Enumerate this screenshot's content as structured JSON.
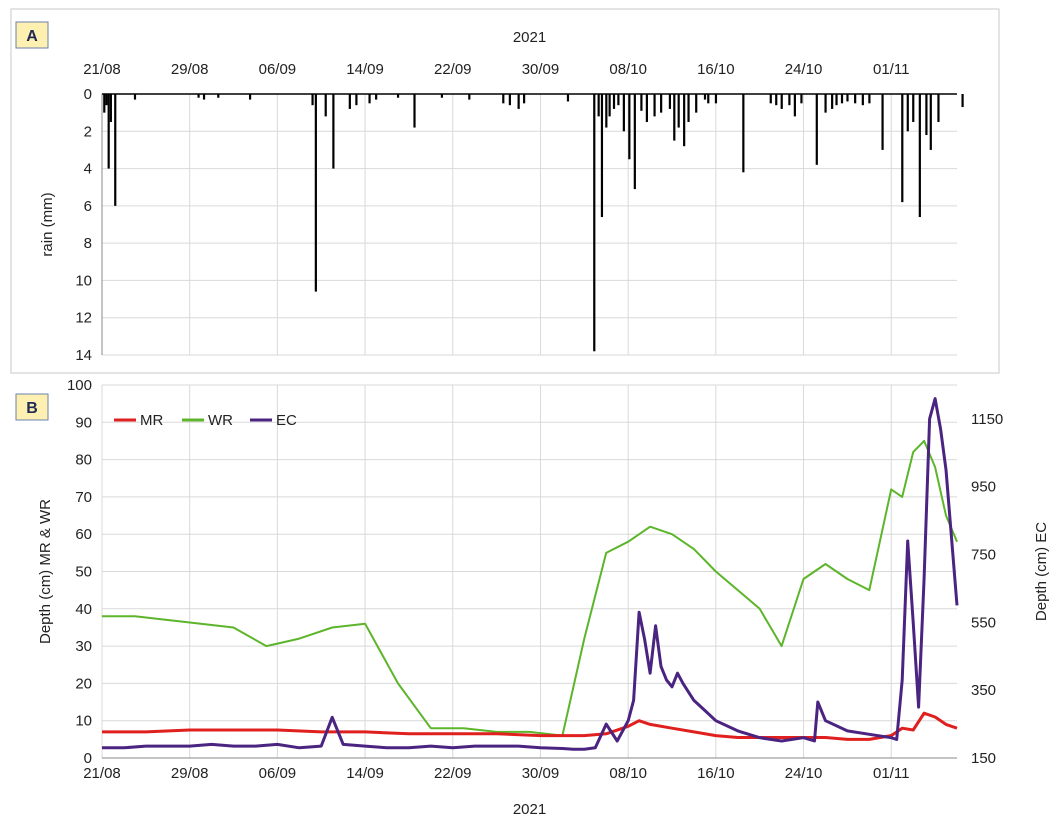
{
  "chart_data": [
    {
      "panel": "A",
      "type": "bar",
      "xlabel_top": "2021",
      "ylabel": "rain (mm)",
      "x_ticks": [
        "21/08",
        "29/08",
        "06/09",
        "14/09",
        "22/09",
        "30/09",
        "08/10",
        "16/10",
        "24/10",
        "01/11"
      ],
      "ylim": [
        0,
        14
      ],
      "y_inverted": true,
      "y_ticks": [
        0,
        2,
        4,
        6,
        8,
        10,
        12,
        14
      ],
      "grid": true,
      "x_day_range": [
        0,
        78
      ],
      "x_day_origin": "21/08",
      "series": [
        {
          "name": "",
          "color": "#000000",
          "x": [
            0.2,
            0.4,
            0.6,
            0.8,
            1.2,
            3.0,
            8.8,
            9.3,
            10.6,
            13.5,
            19.2,
            19.5,
            20.4,
            21.1,
            22.6,
            23.2,
            24.4,
            25.0,
            27.0,
            28.5,
            31.0,
            33.5,
            36.6,
            37.2,
            38.0,
            38.5,
            42.5,
            44.9,
            45.3,
            45.6,
            46.0,
            46.3,
            46.7,
            47.1,
            47.6,
            48.1,
            48.6,
            49.2,
            49.7,
            50.4,
            51.0,
            51.8,
            52.2,
            52.6,
            53.1,
            53.5,
            54.2,
            55.0,
            55.3,
            56.0,
            58.5,
            61.0,
            61.5,
            62.0,
            62.7,
            63.2,
            63.8,
            65.2,
            66.0,
            66.6,
            67.0,
            67.5,
            68.0,
            68.7,
            69.4,
            70.0,
            71.2,
            73.0,
            73.5,
            74.0,
            74.6,
            75.2,
            75.6,
            76.3,
            78.5
          ],
          "values": [
            1.0,
            0.6,
            4.0,
            1.5,
            6.0,
            0.3,
            0.2,
            0.3,
            0.2,
            0.3,
            0.6,
            10.6,
            1.2,
            4.0,
            0.8,
            0.6,
            0.5,
            0.3,
            0.2,
            1.8,
            0.2,
            0.3,
            0.5,
            0.6,
            0.8,
            0.5,
            0.4,
            13.8,
            1.2,
            6.6,
            1.8,
            1.2,
            0.8,
            0.6,
            2.0,
            3.5,
            5.1,
            0.9,
            1.5,
            1.2,
            1.0,
            0.8,
            2.5,
            1.8,
            2.8,
            1.5,
            1.0,
            0.3,
            0.5,
            0.5,
            4.2,
            0.5,
            0.6,
            0.8,
            0.6,
            1.2,
            0.5,
            3.8,
            1.0,
            0.8,
            0.6,
            0.5,
            0.4,
            0.5,
            0.6,
            0.5,
            3.0,
            5.8,
            2.0,
            1.5,
            6.6,
            2.2,
            3.0,
            1.5,
            0.7
          ]
        }
      ]
    },
    {
      "panel": "B",
      "type": "line",
      "xlabel": "2021",
      "ylabel_left": "Depth (cm) MR & WR",
      "ylabel_right": "Depth (cm) EC",
      "x_ticks": [
        "21/08",
        "29/08",
        "06/09",
        "14/09",
        "22/09",
        "30/09",
        "08/10",
        "16/10",
        "24/10",
        "01/11"
      ],
      "ylim_left": [
        0,
        100
      ],
      "y_ticks_left": [
        0,
        10,
        20,
        30,
        40,
        50,
        60,
        70,
        80,
        90,
        100
      ],
      "ylim_right": [
        150,
        1250
      ],
      "y_ticks_right": [
        150,
        350,
        550,
        750,
        950,
        1150
      ],
      "grid": true,
      "legend_position": "top-left",
      "x_day_range": [
        0,
        78
      ],
      "x_day_origin": "21/08",
      "series": [
        {
          "name": "MR",
          "color": "#e0201f",
          "axis": "left",
          "x": [
            0,
            4,
            8,
            12,
            16,
            20,
            24,
            28,
            32,
            36,
            40,
            44,
            46,
            48,
            49,
            50,
            52,
            54,
            56,
            58,
            60,
            62,
            64,
            66,
            68,
            70,
            72,
            73,
            74,
            75,
            76,
            77,
            78
          ],
          "values": [
            7,
            7,
            7.5,
            7.5,
            7.5,
            7,
            7,
            6.5,
            6.5,
            6.5,
            6,
            6,
            6.5,
            8.5,
            10,
            9,
            8,
            7,
            6,
            5.5,
            5.5,
            5.5,
            5.5,
            5.5,
            5,
            5,
            6,
            8,
            7.5,
            12,
            11,
            9,
            8
          ]
        },
        {
          "name": "WR",
          "color": "#5cb52a",
          "axis": "left",
          "x": [
            0,
            3,
            6,
            9,
            12,
            15,
            18,
            21,
            24,
            27,
            30,
            33,
            36,
            39,
            42,
            44,
            46,
            48,
            50,
            52,
            54,
            56,
            58,
            60,
            62,
            64,
            66,
            68,
            70,
            72,
            73,
            74,
            75,
            76,
            77,
            78
          ],
          "values": [
            38,
            38,
            37,
            36,
            35,
            30,
            32,
            35,
            36,
            20,
            8,
            8,
            7,
            7,
            6,
            32,
            55,
            58,
            62,
            60,
            56,
            50,
            45,
            40,
            30,
            48,
            52,
            48,
            45,
            72,
            70,
            82,
            85,
            78,
            65,
            58
          ]
        },
        {
          "name": "EC",
          "color": "#4a2480",
          "axis": "right",
          "x": [
            0,
            2,
            4,
            6,
            8,
            10,
            12,
            14,
            16,
            18,
            20,
            21,
            22,
            24,
            26,
            28,
            30,
            32,
            34,
            36,
            38,
            40,
            42,
            43,
            44,
            45,
            46,
            47,
            48,
            48.5,
            49,
            49.5,
            50,
            50.5,
            51,
            51.5,
            52,
            52.5,
            53,
            54,
            55,
            56,
            58,
            60,
            62,
            64,
            65,
            65.3,
            66,
            68,
            70,
            72,
            72.5,
            73,
            73.5,
            74,
            74.5,
            75,
            75.5,
            76,
            76.5,
            77,
            77.5,
            78
          ],
          "values": [
            180,
            180,
            185,
            185,
            185,
            190,
            185,
            185,
            190,
            180,
            185,
            270,
            190,
            185,
            180,
            180,
            185,
            180,
            185,
            185,
            185,
            180,
            178,
            176,
            176,
            180,
            250,
            200,
            260,
            320,
            580,
            500,
            400,
            540,
            420,
            380,
            360,
            400,
            370,
            320,
            290,
            260,
            230,
            210,
            200,
            210,
            200,
            315,
            260,
            230,
            220,
            210,
            205,
            380,
            790,
            550,
            300,
            680,
            1150,
            1210,
            1120,
            1000,
            800,
            600
          ]
        }
      ]
    }
  ],
  "panels": {
    "a": {
      "label": "A"
    },
    "b": {
      "label": "B"
    }
  }
}
